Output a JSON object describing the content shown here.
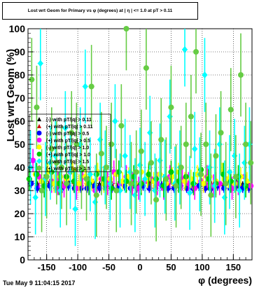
{
  "title": "Lost wrt Geom for Primary vs φ (degrees) at | η | <= 1.0 at pT > 0.11",
  "timestamp": "Tue May  9 11:04:15 2017",
  "chart_data": {
    "type": "scatter",
    "title": "Lost wrt Geom for Primary vs φ (degrees) at | η | <= 1.0 at pT > 0.11",
    "xlabel": "φ (degrees)",
    "ylabel": "Lost wrt Geom (%)",
    "xlim": [
      -180,
      180
    ],
    "ylim": [
      0,
      100
    ],
    "xticks": [
      -150,
      -100,
      -50,
      0,
      50,
      100,
      150
    ],
    "yticks": [
      0,
      10,
      20,
      30,
      40,
      50,
      60,
      70,
      80,
      90,
      100
    ],
    "grid": true,
    "legend_position": "left-middle",
    "legend_entries": [
      "(-) with pT/|q| > 0.11",
      "(+) with pT/|q| > 0.11",
      "(-) with pT/|q| > 0.5",
      "(+) with pT/|q| > 0.5",
      "(-) with pT/|q| > 1.0",
      "(+) with pT/|q| > 1.0",
      "(-) with pT/|q| > 1.5",
      "(+) with pT/|q| > 1.5"
    ],
    "series": [
      {
        "name": "(-) with pT/|q| > 0.11",
        "color": "#000000",
        "marker": "triangle",
        "x": [
          -175,
          -165,
          -155,
          -145,
          -135,
          -125,
          -115,
          -105,
          -95,
          -85,
          -75,
          -65,
          -55,
          -45,
          -35,
          -25,
          -15,
          -5,
          5,
          15,
          25,
          35,
          45,
          55,
          65,
          75,
          85,
          95,
          105,
          115,
          125,
          135,
          145,
          155,
          165,
          175
        ],
        "y": [
          34,
          33,
          33,
          34,
          33,
          33,
          34,
          33,
          32,
          33,
          34,
          33,
          33,
          33,
          33,
          32,
          33,
          33,
          33,
          34,
          33,
          33,
          33,
          33,
          34,
          33,
          33,
          33,
          33,
          33,
          33,
          33,
          33,
          34,
          33,
          33
        ],
        "err": 1.0
      },
      {
        "name": "(+) with pT/|q| > 0.11",
        "color": "#cc0000",
        "marker": "triangle",
        "x": [
          -175,
          -165,
          -155,
          -145,
          -135,
          -125,
          -115,
          -105,
          -95,
          -85,
          -75,
          -65,
          -55,
          -45,
          -35,
          -25,
          -15,
          -5,
          5,
          15,
          25,
          35,
          45,
          55,
          65,
          75,
          85,
          95,
          105,
          115,
          125,
          135,
          145,
          155,
          165,
          175
        ],
        "y": [
          33,
          32,
          33,
          33,
          32,
          33,
          33,
          33,
          32,
          33,
          33,
          32,
          33,
          33,
          32,
          33,
          33,
          32,
          33,
          33,
          32,
          33,
          33,
          33,
          32,
          33,
          33,
          32,
          33,
          33,
          33,
          32,
          33,
          33,
          32,
          33
        ],
        "err": 1.0
      },
      {
        "name": "(-) with pT/|q| > 0.5",
        "color": "#0000ff",
        "marker": "circle",
        "x": [
          -175,
          -165,
          -155,
          -145,
          -135,
          -125,
          -115,
          -105,
          -95,
          -85,
          -75,
          -65,
          -55,
          -45,
          -35,
          -25,
          -15,
          -5,
          5,
          15,
          25,
          35,
          45,
          55,
          65,
          75,
          85,
          95,
          105,
          115,
          125,
          135,
          145,
          155,
          165,
          175
        ],
        "y": [
          33,
          31,
          32,
          32,
          31,
          31,
          32,
          31,
          31,
          31,
          32,
          31,
          32,
          31,
          31,
          32,
          31,
          31,
          32,
          31,
          31,
          32,
          31,
          31,
          32,
          31,
          31,
          32,
          31,
          31,
          32,
          31,
          31,
          32,
          31,
          31
        ],
        "err": 2.0
      },
      {
        "name": "(+) with pT/|q| > 0.5",
        "color": "#ff00ff",
        "marker": "circle",
        "x": [
          -172,
          -162,
          -152,
          -142,
          -132,
          -122,
          -112,
          -102,
          -92,
          -82,
          -72,
          -62,
          -52,
          -42,
          -32,
          -22,
          -12,
          -2,
          8,
          18,
          28,
          38,
          48,
          58,
          68,
          78,
          88,
          98,
          108,
          118,
          128,
          138,
          148,
          158,
          168,
          178
        ],
        "y": [
          43,
          36,
          35,
          34,
          33,
          32,
          38,
          31,
          36,
          33,
          30,
          35,
          33,
          38,
          33,
          36,
          33,
          31,
          34,
          35,
          33,
          31,
          36,
          33,
          35,
          33,
          31,
          34,
          36,
          32,
          33,
          35,
          31,
          33,
          36,
          32
        ],
        "err": 5.0
      },
      {
        "name": "(-) with pT/|q| > 1.0",
        "color": "#ffff00",
        "marker": "circle",
        "x": [
          -168,
          -158,
          -148,
          -138,
          -128,
          -118,
          -108,
          -98,
          -88,
          -78,
          -68,
          -58,
          -48,
          -38,
          -28,
          -18,
          -8,
          2,
          12,
          22,
          32,
          42,
          52,
          62,
          72,
          82,
          92,
          102,
          112,
          122,
          132,
          142,
          152,
          162,
          172
        ],
        "y": [
          37,
          34,
          38,
          33,
          36,
          35,
          39,
          33,
          36,
          34,
          38,
          33,
          35,
          37,
          34,
          36,
          33,
          38,
          35,
          34,
          37,
          33,
          36,
          38,
          34,
          35,
          37,
          33,
          36,
          34,
          38,
          35,
          33,
          36,
          34
        ],
        "err": 4.0
      },
      {
        "name": "(+) with pT/|q| > 1.0",
        "color": "#00cc00",
        "marker": "circle",
        "x": [
          -178,
          -166,
          -154,
          -142,
          -130,
          -118,
          -106,
          -94,
          -82,
          -70,
          -58,
          -46,
          -34,
          -22,
          -10,
          2,
          14,
          26,
          38,
          50,
          62,
          74,
          86,
          98,
          110,
          122,
          134,
          146,
          158,
          170
        ],
        "y": [
          35,
          37,
          32,
          38,
          33,
          36,
          34,
          39,
          33,
          37,
          35,
          31,
          38,
          34,
          36,
          33,
          37,
          35,
          32,
          38,
          34,
          36,
          33,
          39,
          35,
          33,
          37,
          34,
          36,
          32
        ],
        "err": 5.0
      },
      {
        "name": "(-) with pT/|q| > 1.5",
        "color": "#00ffff",
        "marker": "diamond",
        "x": [
          -176,
          -168,
          -160,
          -152,
          -144,
          -136,
          -128,
          -120,
          -112,
          -104,
          -96,
          -88,
          -80,
          -72,
          -64,
          -56,
          -48,
          -40,
          -32,
          -24,
          -16,
          -8,
          0,
          8,
          16,
          24,
          32,
          40,
          48,
          56,
          64,
          72,
          80,
          88,
          96,
          104,
          112,
          120,
          128,
          136,
          144,
          152,
          160,
          168,
          176
        ],
        "y": [
          40,
          27,
          85,
          35,
          42,
          45,
          30,
          57,
          38,
          22,
          50,
          75,
          37,
          25,
          52,
          40,
          33,
          60,
          30,
          45,
          38,
          28,
          41,
          35,
          55,
          30,
          43,
          36,
          62,
          33,
          40,
          91,
          29,
          48,
          37,
          80,
          40,
          32,
          50,
          27,
          38,
          45,
          30,
          42,
          50
        ],
        "err": 16.0
      },
      {
        "name": "(+) with pT/|q| > 1.5",
        "color": "#66cc44",
        "marker": "circle",
        "x": [
          -174,
          -166,
          -158,
          -150,
          -142,
          -134,
          -126,
          -118,
          -110,
          -102,
          -94,
          -86,
          -78,
          -70,
          -62,
          -54,
          -46,
          -38,
          -30,
          -22,
          -14,
          -6,
          2,
          10,
          18,
          26,
          34,
          42,
          50,
          58,
          66,
          74,
          82,
          90,
          98,
          106,
          114,
          122,
          130,
          138,
          146,
          154,
          162,
          170,
          178
        ],
        "y": [
          78,
          66,
          30,
          36,
          48,
          42,
          40,
          33,
          55,
          50,
          40,
          35,
          75,
          28,
          46,
          40,
          50,
          30,
          58,
          100,
          33,
          38,
          47,
          83,
          42,
          26,
          52,
          35,
          66,
          32,
          40,
          50,
          62,
          90,
          37,
          50,
          28,
          45,
          55,
          33,
          65,
          36,
          80,
          50,
          42
        ],
        "err": 18.0
      }
    ]
  }
}
